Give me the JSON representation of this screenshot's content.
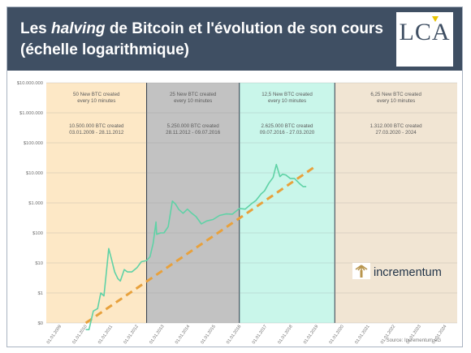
{
  "header": {
    "title_a": "Les ",
    "title_b": "halving",
    "title_c": " de Bitcoin et l'évolution de son cours",
    "title_d": "(échelle logarithmique)",
    "logo_text": "LCA"
  },
  "chart_data": {
    "type": "line",
    "y_scale": "log",
    "ylim": [
      0.1,
      1000000
    ],
    "y_ticks": [
      "$10.000.000",
      "$1.000.000",
      "$100.000",
      "$10.000",
      "$1.000",
      "$100",
      "$10",
      "$1",
      "$0"
    ],
    "x_ticks": [
      "01.01.2009",
      "01.01.2010",
      "01.01.2011",
      "01.01.2012",
      "01.01.2013",
      "01.01.2014",
      "01.01.2015",
      "01.01.2016",
      "01.01.2017",
      "01.01.2018",
      "01.01.2019",
      "01.01.2020",
      "01.01.2021",
      "01.01.2022",
      "01.01.2023",
      "01.01.2024"
    ],
    "xlim": [
      "2009-01-01",
      "2025-01-01"
    ],
    "eras": [
      {
        "line1": "50 New BTC created",
        "line2": "every 10 minutes",
        "line3": "10.500.000 BTC created",
        "line4": "03.01.2009 - 28.11.2012",
        "start": "2009-01-01",
        "end": "2012-11-28",
        "color": "#fde8c6"
      },
      {
        "line1": "25 New BTC created",
        "line2": "every 10 minutes",
        "line3": "5.250.000 BTC created",
        "line4": "28.11.2012 - 09.07.2016",
        "start": "2012-11-28",
        "end": "2016-07-09",
        "color": "#c2c2c2"
      },
      {
        "line1": "12,5 New BTC created",
        "line2": "every 10 minutes",
        "line3": "2.625.000 BTC created",
        "line4": "09.07.2016 - 27.03.2020",
        "start": "2016-07-09",
        "end": "2020-03-27",
        "color": "#c9f6ea"
      },
      {
        "line1": "6,25 New BTC created",
        "line2": "every 10 minutes",
        "line3": "1.312.000 BTC created",
        "line4": "27.03.2020 - 2024",
        "start": "2020-03-27",
        "end": "2025-01-01",
        "color": "#f1e5d3"
      }
    ],
    "price_series": {
      "color": "#5fd2a6",
      "x": [
        "2010-07-17",
        "2010-09-01",
        "2010-11-01",
        "2011-01-01",
        "2011-02-15",
        "2011-04-01",
        "2011-05-15",
        "2011-06-08",
        "2011-07-15",
        "2011-09-01",
        "2011-10-15",
        "2011-11-20",
        "2012-01-15",
        "2012-03-01",
        "2012-05-01",
        "2012-07-15",
        "2012-09-15",
        "2012-11-28",
        "2013-01-15",
        "2013-03-01",
        "2013-04-10",
        "2013-04-20",
        "2013-06-15",
        "2013-08-01",
        "2013-10-01",
        "2013-11-30",
        "2014-01-15",
        "2014-03-01",
        "2014-05-01",
        "2014-07-01",
        "2014-09-01",
        "2014-11-01",
        "2015-01-15",
        "2015-04-01",
        "2015-07-01",
        "2015-10-01",
        "2016-01-01",
        "2016-04-01",
        "2016-07-09",
        "2016-10-01",
        "2017-01-01",
        "2017-03-01",
        "2017-05-15",
        "2017-07-01",
        "2017-09-01",
        "2017-11-01",
        "2017-12-17",
        "2018-02-06",
        "2018-03-15",
        "2018-05-01",
        "2018-07-01",
        "2018-09-01",
        "2018-11-20",
        "2019-01-01",
        "2019-02-15"
      ],
      "y": [
        0.06,
        0.06,
        0.25,
        0.3,
        1.0,
        0.8,
        8,
        30,
        14,
        5,
        3,
        2.5,
        6,
        5,
        5,
        7,
        11,
        12,
        16,
        45,
        230,
        90,
        100,
        100,
        160,
        1150,
        900,
        600,
        450,
        620,
        450,
        350,
        200,
        250,
        280,
        380,
        430,
        420,
        650,
        620,
        950,
        1200,
        2000,
        2500,
        4500,
        7000,
        19000,
        7500,
        9000,
        8500,
        6500,
        6500,
        4200,
        3500,
        3500
      ]
    },
    "trend_series": {
      "color": "#e8a13c",
      "x": [
        "2010-07-17",
        "2019-06-01"
      ],
      "y": [
        0.1,
        15000
      ]
    },
    "incrementum_label": "incrementum",
    "source": "Source: Incrementum AG"
  }
}
